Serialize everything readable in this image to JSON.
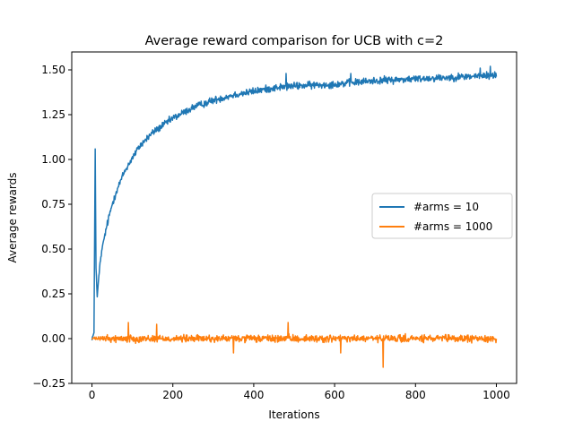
{
  "chart_data": {
    "type": "line",
    "title": "Average reward comparison for UCB with c=2",
    "xlabel": "Iterations",
    "ylabel": "Average rewards",
    "xlim": [
      -50,
      1050
    ],
    "ylim": [
      -0.25,
      1.6
    ],
    "xticks": [
      0,
      200,
      400,
      600,
      800,
      1000
    ],
    "xtick_labels": [
      "0",
      "200",
      "400",
      "600",
      "800",
      "1000"
    ],
    "yticks": [
      -0.25,
      0.0,
      0.25,
      0.5,
      0.75,
      1.0,
      1.25,
      1.5
    ],
    "ytick_labels": [
      "−0.25",
      "0.00",
      "0.25",
      "0.50",
      "0.75",
      "1.00",
      "1.25",
      "1.50"
    ],
    "grid": false,
    "legend_position": "center-right",
    "series": [
      {
        "name": "#arms = 10",
        "color": "#1f77b4",
        "noise": 0.03,
        "points": [
          [
            0,
            0.0
          ],
          [
            5,
            0.03
          ],
          [
            8,
            1.06
          ],
          [
            10,
            0.4
          ],
          [
            13,
            0.23
          ],
          [
            16,
            0.32
          ],
          [
            20,
            0.42
          ],
          [
            25,
            0.5
          ],
          [
            30,
            0.56
          ],
          [
            40,
            0.66
          ],
          [
            50,
            0.75
          ],
          [
            60,
            0.82
          ],
          [
            80,
            0.93
          ],
          [
            100,
            1.01
          ],
          [
            120,
            1.08
          ],
          [
            150,
            1.15
          ],
          [
            200,
            1.23
          ],
          [
            250,
            1.29
          ],
          [
            300,
            1.33
          ],
          [
            350,
            1.36
          ],
          [
            400,
            1.38
          ],
          [
            450,
            1.4
          ],
          [
            500,
            1.41
          ],
          [
            600,
            1.42
          ],
          [
            700,
            1.44
          ],
          [
            800,
            1.45
          ],
          [
            900,
            1.46
          ],
          [
            1000,
            1.47
          ]
        ],
        "spikes": [
          [
            480,
            1.48
          ],
          [
            985,
            1.52
          ],
          [
            960,
            1.51
          ],
          [
            640,
            1.48
          ]
        ]
      },
      {
        "name": "#arms = 1000",
        "color": "#ff7f0e",
        "noise": 0.03,
        "points": [
          [
            0,
            0.0
          ],
          [
            1000,
            0.0
          ]
        ],
        "spikes": [
          [
            720,
            -0.16
          ],
          [
            90,
            0.09
          ],
          [
            160,
            0.08
          ],
          [
            485,
            0.09
          ],
          [
            350,
            -0.08
          ],
          [
            615,
            -0.08
          ]
        ]
      }
    ]
  }
}
